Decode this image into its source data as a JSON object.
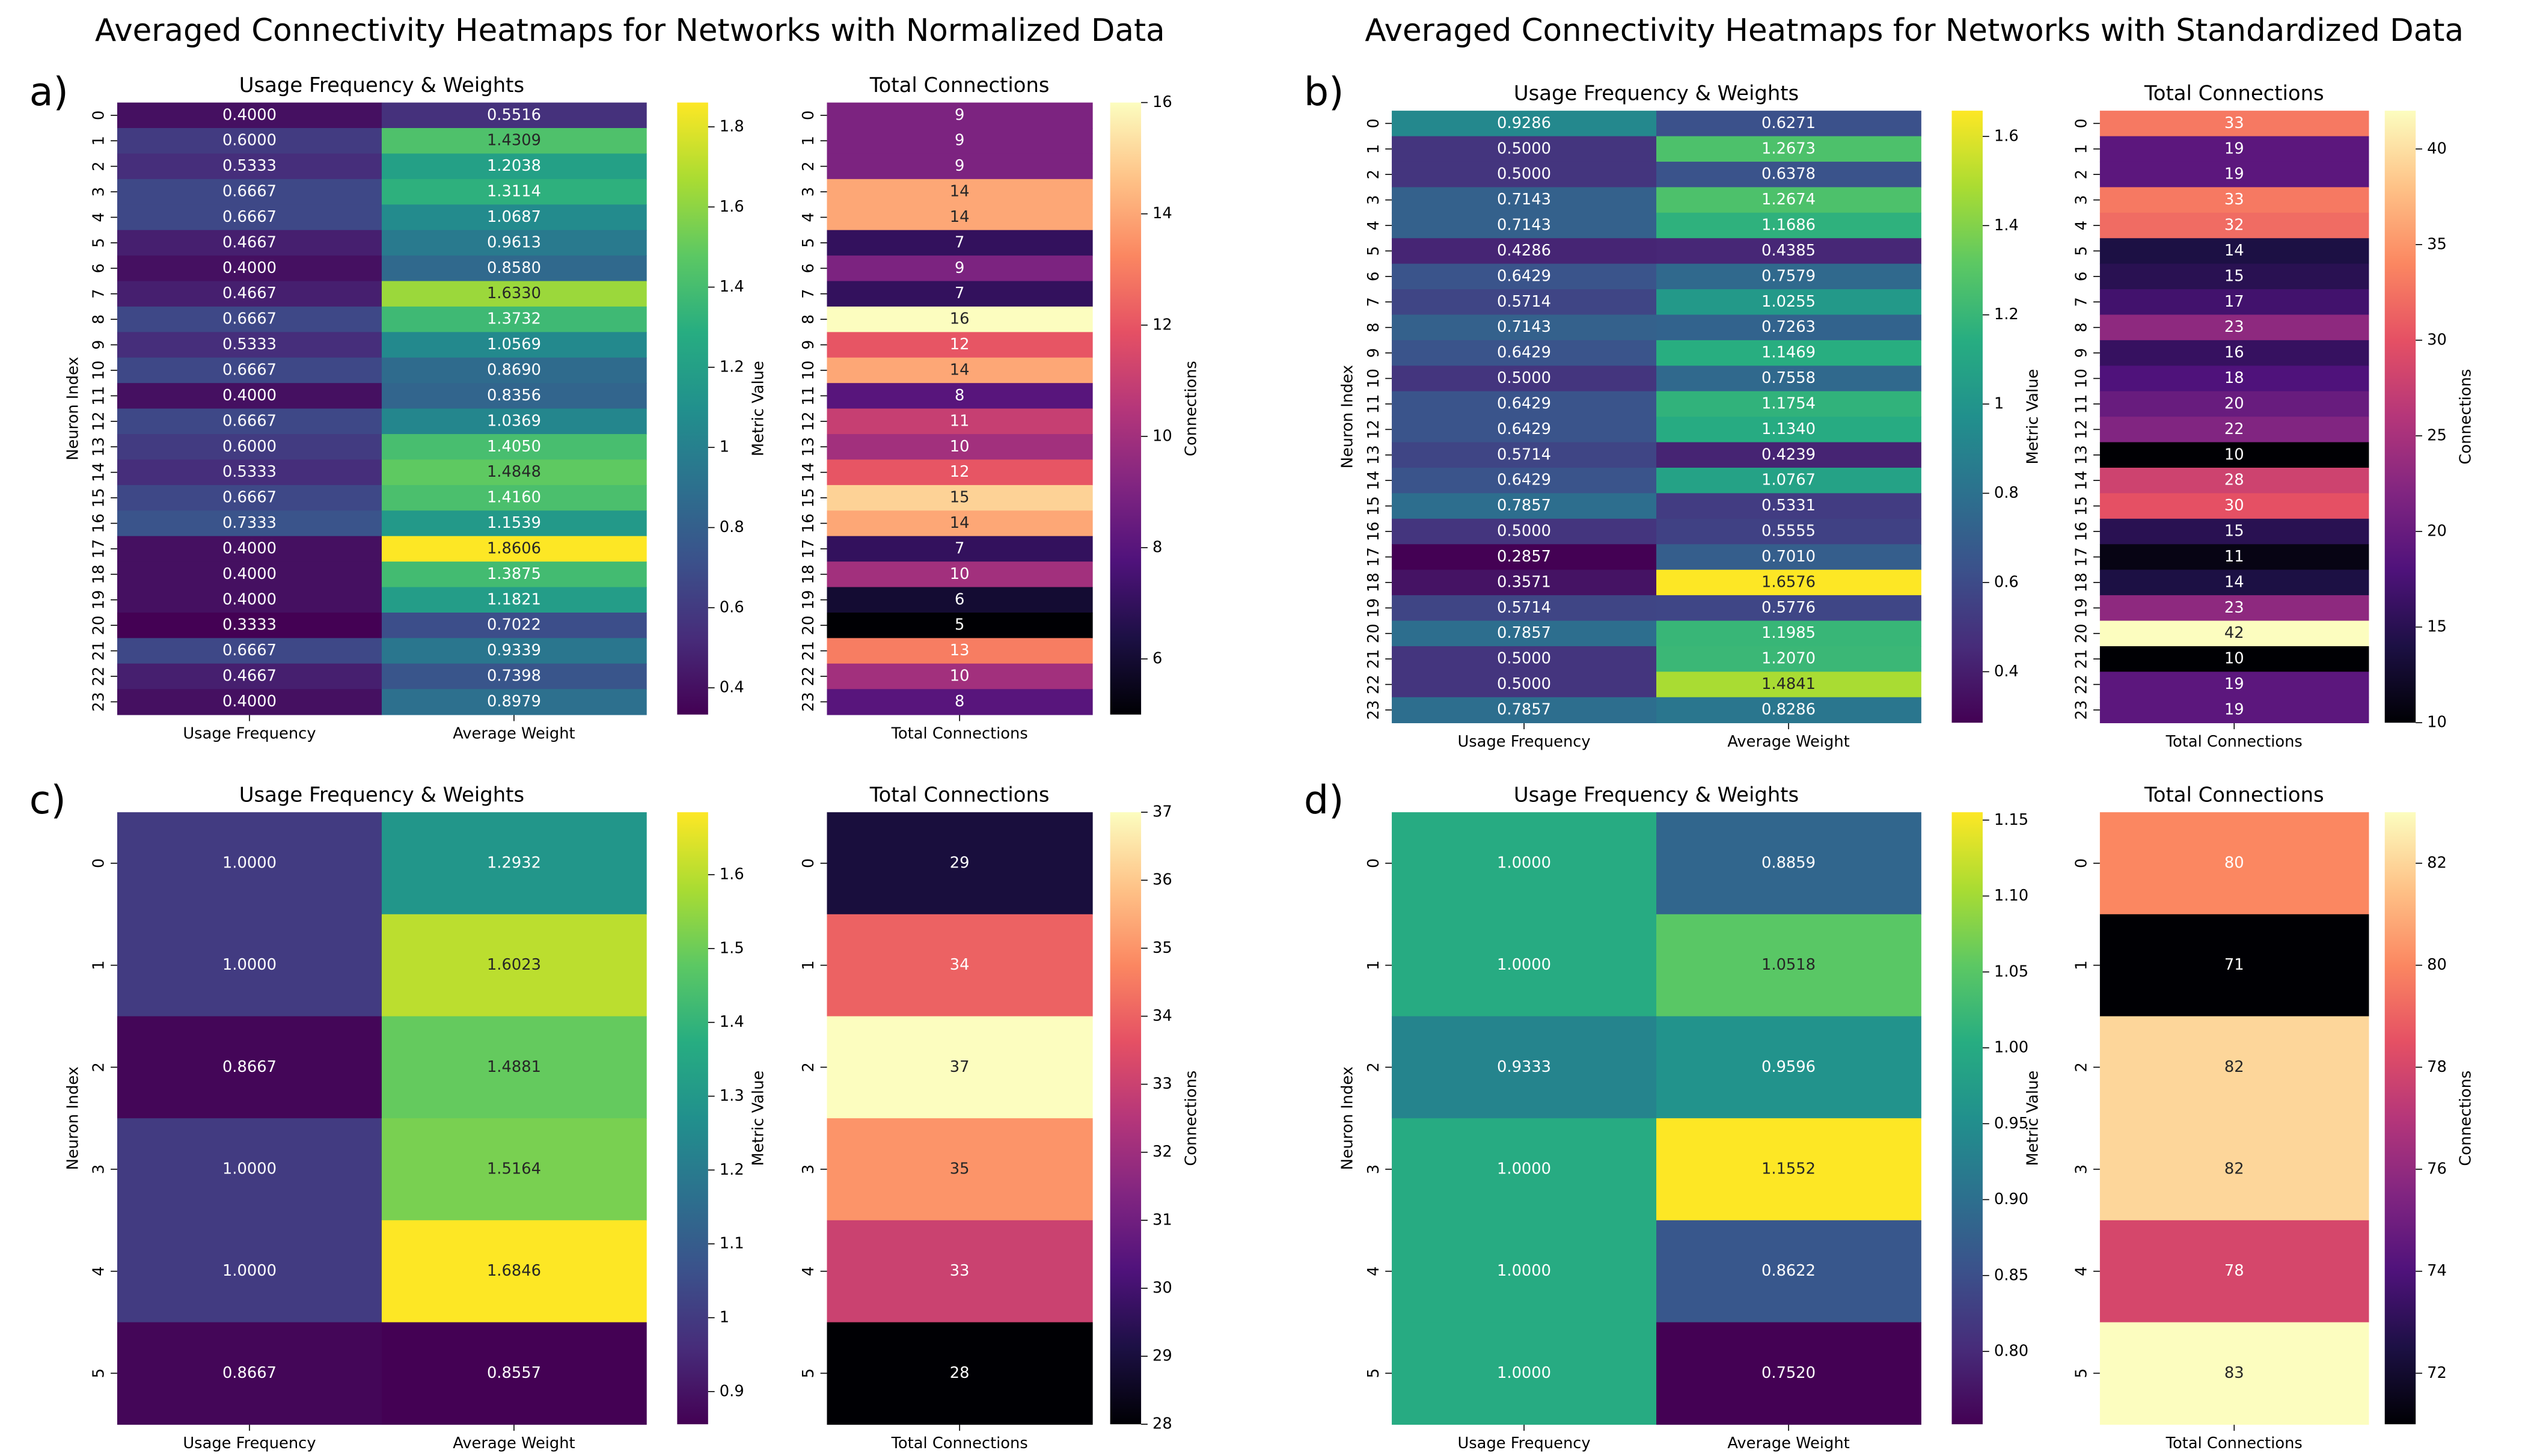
{
  "suptitles": [
    "Averaged Connectivity Heatmaps for Networks with Normalized Data",
    "Averaged Connectivity Heatmaps for Networks with Standardized Data"
  ],
  "panel_labels": [
    "a)",
    "b)",
    "c)",
    "d)"
  ],
  "chart_data": [
    {
      "type": "heatmap",
      "title": "Usage Frequency & Weights",
      "ylabel": "Neuron Index",
      "categories": [
        "0",
        "1",
        "2",
        "3",
        "4",
        "5",
        "6",
        "7",
        "8",
        "9",
        "10",
        "11",
        "12",
        "13",
        "14",
        "15",
        "16",
        "17",
        "18",
        "19",
        "20",
        "21",
        "22",
        "23"
      ],
      "series": [
        {
          "name": "Usage Frequency",
          "values": [
            0.4,
            0.6,
            0.5333,
            0.6667,
            0.6667,
            0.4667,
            0.4,
            0.4667,
            0.6667,
            0.5333,
            0.6667,
            0.4,
            0.6667,
            0.6,
            0.5333,
            0.6667,
            0.7333,
            0.4,
            0.4,
            0.4,
            0.3333,
            0.6667,
            0.4667,
            0.4
          ],
          "value_labels": [
            "0.4000",
            "0.6000",
            "0.5333",
            "0.6667",
            "0.6667",
            "0.4667",
            "0.4000",
            "0.4667",
            "0.6667",
            "0.5333",
            "0.6667",
            "0.4000",
            "0.6667",
            "0.6000",
            "0.5333",
            "0.6667",
            "0.7333",
            "0.4000",
            "0.4000",
            "0.4000",
            "0.3333",
            "0.6667",
            "0.4667",
            "0.4000"
          ]
        },
        {
          "name": "Average Weight",
          "values": [
            0.5516,
            1.4309,
            1.2038,
            1.3114,
            1.0687,
            0.9613,
            0.858,
            1.633,
            1.3732,
            1.0569,
            0.869,
            0.8356,
            1.0369,
            1.405,
            1.4848,
            1.416,
            1.1539,
            1.8606,
            1.3875,
            1.1821,
            0.7022,
            0.9339,
            0.7398,
            0.8979
          ],
          "value_labels": [
            "0.5516",
            "1.4309",
            "1.2038",
            "1.3114",
            "1.0687",
            "0.9613",
            "0.8580",
            "1.6330",
            "1.3732",
            "1.0569",
            "0.8690",
            "0.8356",
            "1.0369",
            "1.4050",
            "1.4848",
            "1.4160",
            "1.1539",
            "1.8606",
            "1.3875",
            "1.1821",
            "0.7022",
            "0.9339",
            "0.7398",
            "0.8979"
          ]
        }
      ],
      "colormap": "viridis",
      "colorbar_label": "Metric Value",
      "clim": [
        0.3333,
        1.8606
      ],
      "cticks": [
        0.4,
        0.6,
        0.8,
        1.0,
        1.2,
        1.4,
        1.6,
        1.8
      ]
    },
    {
      "type": "heatmap",
      "title": "Total Connections",
      "categories": [
        "0",
        "1",
        "2",
        "3",
        "4",
        "5",
        "6",
        "7",
        "8",
        "9",
        "10",
        "11",
        "12",
        "13",
        "14",
        "15",
        "16",
        "17",
        "18",
        "19",
        "20",
        "21",
        "22",
        "23"
      ],
      "series": [
        {
          "name": "Total Connections",
          "values": [
            9,
            9,
            9,
            14,
            14,
            7,
            9,
            7,
            16,
            12,
            14,
            8,
            11,
            10,
            12,
            15,
            14,
            7,
            10,
            6,
            5,
            13,
            10,
            8
          ]
        }
      ],
      "colormap": "magma",
      "colorbar_label": "Connections",
      "clim": [
        5,
        16
      ],
      "cticks": [
        6,
        8,
        10,
        12,
        14,
        16
      ]
    },
    {
      "type": "heatmap",
      "title": "Usage Frequency & Weights",
      "ylabel": "Neuron Index",
      "categories": [
        "0",
        "1",
        "2",
        "3",
        "4",
        "5",
        "6",
        "7",
        "8",
        "9",
        "10",
        "11",
        "12",
        "13",
        "14",
        "15",
        "16",
        "17",
        "18",
        "19",
        "20",
        "21",
        "22",
        "23"
      ],
      "series": [
        {
          "name": "Usage Frequency",
          "values": [
            0.9286,
            0.5,
            0.5,
            0.7143,
            0.7143,
            0.4286,
            0.6429,
            0.5714,
            0.7143,
            0.6429,
            0.5,
            0.6429,
            0.6429,
            0.5714,
            0.6429,
            0.7857,
            0.5,
            0.2857,
            0.3571,
            0.5714,
            0.7857,
            0.5,
            0.5,
            0.7857
          ],
          "value_labels": [
            "0.9286",
            "0.5000",
            "0.5000",
            "0.7143",
            "0.7143",
            "0.4286",
            "0.6429",
            "0.5714",
            "0.7143",
            "0.6429",
            "0.5000",
            "0.6429",
            "0.6429",
            "0.5714",
            "0.6429",
            "0.7857",
            "0.5000",
            "0.2857",
            "0.3571",
            "0.5714",
            "0.7857",
            "0.5000",
            "0.5000",
            "0.7857"
          ]
        },
        {
          "name": "Average Weight",
          "values": [
            0.6271,
            1.2673,
            0.6378,
            1.2674,
            1.1686,
            0.4385,
            0.7579,
            1.0255,
            0.7263,
            1.1469,
            0.7558,
            1.1754,
            1.134,
            0.4239,
            1.0767,
            0.5331,
            0.5555,
            0.701,
            1.6576,
            0.5776,
            1.1985,
            1.207,
            1.4841,
            0.8286
          ],
          "value_labels": [
            "0.6271",
            "1.2673",
            "0.6378",
            "1.2674",
            "1.1686",
            "0.4385",
            "0.7579",
            "1.0255",
            "0.7263",
            "1.1469",
            "0.7558",
            "1.1754",
            "1.1340",
            "0.4239",
            "1.0767",
            "0.5331",
            "0.5555",
            "0.7010",
            "1.6576",
            "0.5776",
            "1.1985",
            "1.2070",
            "1.4841",
            "0.8286"
          ]
        }
      ],
      "colormap": "viridis",
      "colorbar_label": "Metric Value",
      "clim": [
        0.2857,
        1.6576
      ],
      "cticks": [
        0.4,
        0.6,
        0.8,
        1.0,
        1.2,
        1.4,
        1.6
      ]
    },
    {
      "type": "heatmap",
      "title": "Total Connections",
      "categories": [
        "0",
        "1",
        "2",
        "3",
        "4",
        "5",
        "6",
        "7",
        "8",
        "9",
        "10",
        "11",
        "12",
        "13",
        "14",
        "15",
        "16",
        "17",
        "18",
        "19",
        "20",
        "21",
        "22",
        "23"
      ],
      "series": [
        {
          "name": "Total Connections",
          "values": [
            33,
            19,
            19,
            33,
            32,
            14,
            15,
            17,
            23,
            16,
            18,
            20,
            22,
            10,
            28,
            30,
            15,
            11,
            14,
            23,
            42,
            10,
            19,
            19
          ]
        }
      ],
      "colormap": "magma",
      "colorbar_label": "Connections",
      "clim": [
        10,
        42
      ],
      "cticks": [
        10,
        15,
        20,
        25,
        30,
        35,
        40
      ]
    },
    {
      "type": "heatmap",
      "title": "Usage Frequency & Weights",
      "ylabel": "Neuron Index",
      "categories": [
        "0",
        "1",
        "2",
        "3",
        "4",
        "5"
      ],
      "series": [
        {
          "name": "Usage Frequency",
          "values": [
            1.0,
            1.0,
            0.8667,
            1.0,
            1.0,
            0.8667
          ],
          "value_labels": [
            "1.0000",
            "1.0000",
            "0.8667",
            "1.0000",
            "1.0000",
            "0.8667"
          ]
        },
        {
          "name": "Average Weight",
          "values": [
            1.2932,
            1.6023,
            1.4881,
            1.5164,
            1.6846,
            0.8557
          ],
          "value_labels": [
            "1.2932",
            "1.6023",
            "1.4881",
            "1.5164",
            "1.6846",
            "0.8557"
          ]
        }
      ],
      "colormap": "viridis",
      "colorbar_label": "Metric Value",
      "clim": [
        0.8557,
        1.6846
      ],
      "cticks": [
        0.9,
        1.0,
        1.1,
        1.2,
        1.3,
        1.4,
        1.5,
        1.6
      ]
    },
    {
      "type": "heatmap",
      "title": "Total Connections",
      "categories": [
        "0",
        "1",
        "2",
        "3",
        "4",
        "5"
      ],
      "series": [
        {
          "name": "Total Connections",
          "values": [
            29,
            34,
            37,
            35,
            33,
            28
          ]
        }
      ],
      "colormap": "magma",
      "colorbar_label": "Connections",
      "clim": [
        28,
        37
      ],
      "cticks": [
        28,
        29,
        30,
        31,
        32,
        33,
        34,
        35,
        36,
        37
      ]
    },
    {
      "type": "heatmap",
      "title": "Usage Frequency & Weights",
      "ylabel": "Neuron Index",
      "categories": [
        "0",
        "1",
        "2",
        "3",
        "4",
        "5"
      ],
      "series": [
        {
          "name": "Usage Frequency",
          "values": [
            1.0,
            1.0,
            0.9333,
            1.0,
            1.0,
            1.0
          ],
          "value_labels": [
            "1.0000",
            "1.0000",
            "0.9333",
            "1.0000",
            "1.0000",
            "1.0000"
          ]
        },
        {
          "name": "Average Weight",
          "values": [
            0.8859,
            1.0518,
            0.9596,
            1.1552,
            0.8622,
            0.752
          ],
          "value_labels": [
            "0.8859",
            "1.0518",
            "0.9596",
            "1.1552",
            "0.8622",
            "0.7520"
          ]
        }
      ],
      "colormap": "viridis",
      "colorbar_label": "Metric Value",
      "clim": [
        0.752,
        1.1552
      ],
      "cticks": [
        {
          "value": 0.8,
          "label": "0.80"
        },
        {
          "value": 0.85,
          "label": "0.85"
        },
        {
          "value": 0.9,
          "label": "0.90"
        },
        {
          "value": 0.95,
          "label": "0.95"
        },
        {
          "value": 1.0,
          "label": "1.00"
        },
        {
          "value": 1.05,
          "label": "1.05"
        },
        {
          "value": 1.1,
          "label": "1.10"
        },
        {
          "value": 1.15,
          "label": "1.15"
        }
      ]
    },
    {
      "type": "heatmap",
      "title": "Total Connections",
      "categories": [
        "0",
        "1",
        "2",
        "3",
        "4",
        "5"
      ],
      "series": [
        {
          "name": "Total Connections",
          "values": [
            80,
            71,
            82,
            82,
            78,
            83
          ]
        }
      ],
      "colormap": "magma",
      "colorbar_label": "Connections",
      "clim": [
        71,
        83
      ],
      "cticks": [
        72,
        74,
        76,
        78,
        80,
        82
      ]
    }
  ]
}
